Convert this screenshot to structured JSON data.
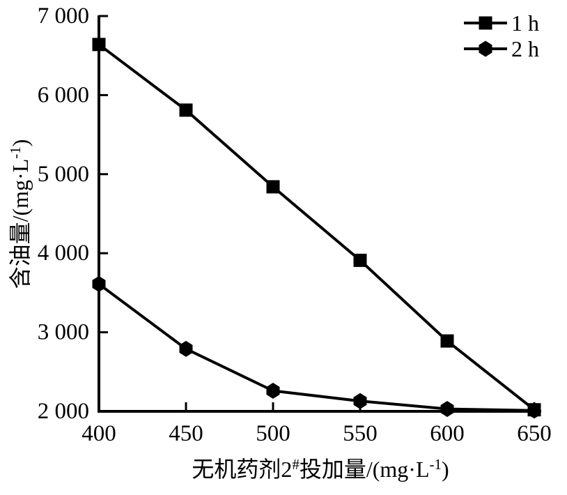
{
  "figure": {
    "background": "#ffffff",
    "ink_color": "#000000"
  },
  "chart_data": {
    "type": "line",
    "title": "",
    "x": [
      400,
      450,
      500,
      550,
      600,
      650
    ],
    "series": [
      {
        "name": "1 h",
        "marker": "square",
        "values": [
          6640,
          5810,
          4840,
          3910,
          2890,
          2020
        ]
      },
      {
        "name": "2 h",
        "marker": "hexagon",
        "values": [
          3610,
          2790,
          2260,
          2130,
          2030,
          2010
        ]
      }
    ],
    "xlabel": "无机药剂2#投加量/(mg·L⁻¹)",
    "xlabel_parts": [
      {
        "t": "无机药剂2"
      },
      {
        "t": "#",
        "sup": true
      },
      {
        "t": "投加量/(mg·L"
      },
      {
        "t": "-1",
        "sup": true
      },
      {
        "t": ")"
      }
    ],
    "ylabel": "含油量/(mg·L⁻¹)",
    "ylabel_parts": [
      {
        "t": "含油量/(mg·L"
      },
      {
        "t": "-1",
        "sup": true
      },
      {
        "t": ")"
      }
    ],
    "xlim": [
      400,
      650
    ],
    "ylim": [
      2000,
      7000
    ],
    "xticks": [
      {
        "value": 400,
        "label": "400"
      },
      {
        "value": 450,
        "label": "450"
      },
      {
        "value": 500,
        "label": "500"
      },
      {
        "value": 550,
        "label": "550"
      },
      {
        "value": 600,
        "label": "600"
      },
      {
        "value": 650,
        "label": "650"
      }
    ],
    "yticks": [
      {
        "value": 2000,
        "label": "2 000"
      },
      {
        "value": 3000,
        "label": "3 000"
      },
      {
        "value": 4000,
        "label": "4 000"
      },
      {
        "value": 5000,
        "label": "5 000"
      },
      {
        "value": 6000,
        "label": "6 000"
      },
      {
        "value": 7000,
        "label": "7 000"
      }
    ],
    "grid": false,
    "legend": {
      "position": "top-right",
      "entries": [
        {
          "label": "1 h",
          "marker": "square"
        },
        {
          "label": "2 h",
          "marker": "hexagon"
        }
      ]
    }
  }
}
